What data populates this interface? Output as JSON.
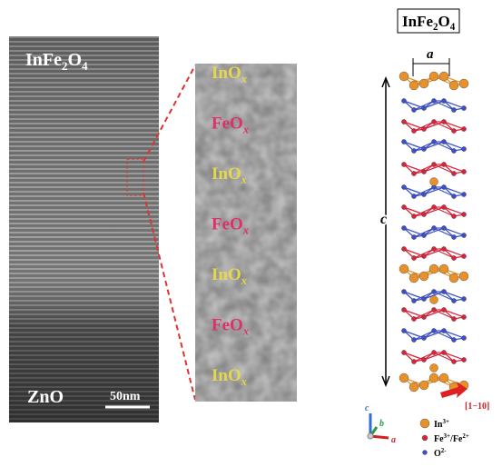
{
  "left_image": {
    "label_top": [
      "InFe",
      "2",
      "O",
      "4"
    ],
    "label_bottom": "ZnO",
    "scale_bar": "50nm"
  },
  "middle_image": {
    "layers": [
      [
        "InO",
        "x"
      ],
      [
        "FeO",
        "x"
      ],
      [
        "InO",
        "x"
      ],
      [
        "FeO",
        "x"
      ],
      [
        "InO",
        "x"
      ],
      [
        "FeO",
        "x"
      ],
      [
        "InO",
        "x"
      ]
    ]
  },
  "structure": {
    "title": [
      "InFe",
      "2",
      "O",
      "4"
    ],
    "lattice_a": "a",
    "lattice_c": "c",
    "direction": "[1−10]",
    "axes": [
      "c",
      "b",
      "a"
    ],
    "legend": [
      [
        "In",
        "3+"
      ],
      [
        "Fe",
        "3+",
        "/Fe",
        "2+"
      ],
      [
        "O",
        "2-"
      ]
    ]
  }
}
